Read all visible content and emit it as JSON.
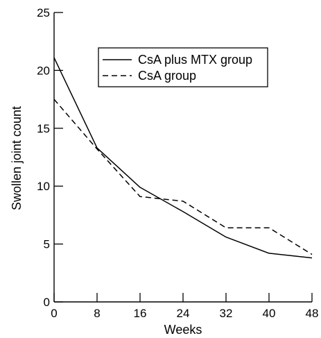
{
  "chart_data": {
    "type": "line",
    "title": "",
    "xlabel": "Weeks",
    "ylabel": "Swollen joint count",
    "x": [
      0,
      8,
      16,
      24,
      32,
      40,
      48
    ],
    "xticks": [
      0,
      8,
      16,
      24,
      32,
      40,
      48
    ],
    "yticks": [
      0,
      5,
      10,
      15,
      20,
      25
    ],
    "xlim": [
      0,
      48
    ],
    "ylim": [
      0,
      25
    ],
    "grid": false,
    "legend_position": "top-right",
    "series": [
      {
        "name": "CsA plus MTX group",
        "style": "solid",
        "color": "#000000",
        "values": [
          21.1,
          13.3,
          9.9,
          7.8,
          5.6,
          4.2,
          3.8
        ]
      },
      {
        "name": "CsA group",
        "style": "dashed",
        "color": "#000000",
        "values": [
          17.5,
          13.2,
          9.1,
          8.7,
          6.4,
          6.4,
          4.1
        ]
      }
    ]
  }
}
